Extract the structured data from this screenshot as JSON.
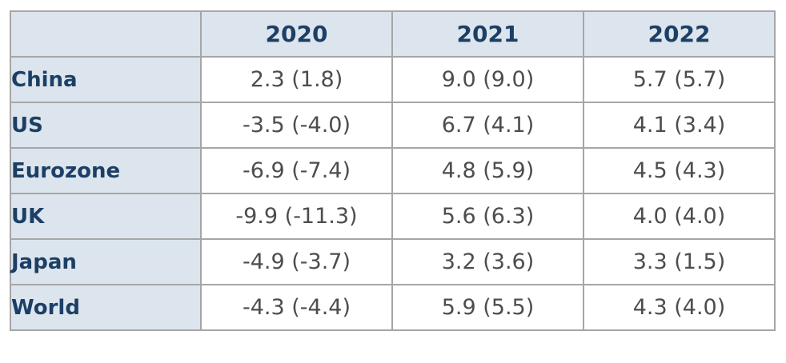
{
  "table": {
    "header": [
      "",
      "2020",
      "2021",
      "2022"
    ],
    "rows": [
      {
        "region": "China",
        "values": [
          "2.3 (1.8)",
          "9.0 (9.0)",
          "5.7 (5.7)"
        ]
      },
      {
        "region": "US",
        "values": [
          "-3.5 (-4.0)",
          "6.7 (4.1)",
          "4.1 (3.4)"
        ]
      },
      {
        "region": "Eurozone",
        "values": [
          "-6.9 (-7.4)",
          "4.8 (5.9)",
          "4.5 (4.3)"
        ]
      },
      {
        "region": "UK",
        "values": [
          "-9.9 (-11.3)",
          "5.6 (6.3)",
          "4.0 (4.0)"
        ]
      },
      {
        "region": "Japan",
        "values": [
          "-4.9 (-3.7)",
          "3.2 (3.6)",
          "3.3 (1.5)"
        ]
      },
      {
        "region": "World",
        "values": [
          "-4.3 (-4.4)",
          "5.9 (5.5)",
          "4.3 (4.0)"
        ]
      }
    ]
  },
  "colors": {
    "header_bg": "#dce5ed",
    "label_text": "#1c3f66",
    "value_text": "#4d4d4d",
    "border": "#a6a6a6"
  },
  "chart_data": {
    "type": "table",
    "columns": [
      "2020",
      "2021",
      "2022"
    ],
    "rows": [
      "China",
      "US",
      "Eurozone",
      "UK",
      "Japan",
      "World"
    ],
    "cells": [
      [
        "2.3 (1.8)",
        "9.0 (9.0)",
        "5.7 (5.7)"
      ],
      [
        "-3.5 (-4.0)",
        "6.7 (4.1)",
        "4.1 (3.4)"
      ],
      [
        "-6.9 (-7.4)",
        "4.8 (5.9)",
        "4.5 (4.3)"
      ],
      [
        "-9.9 (-11.3)",
        "5.6 (6.3)",
        "4.0 (4.0)"
      ],
      [
        "-4.9 (-3.7)",
        "3.2 (3.6)",
        "3.3 (1.5)"
      ],
      [
        "-4.3 (-4.4)",
        "5.9 (5.5)",
        "4.3 (4.0)"
      ]
    ]
  }
}
